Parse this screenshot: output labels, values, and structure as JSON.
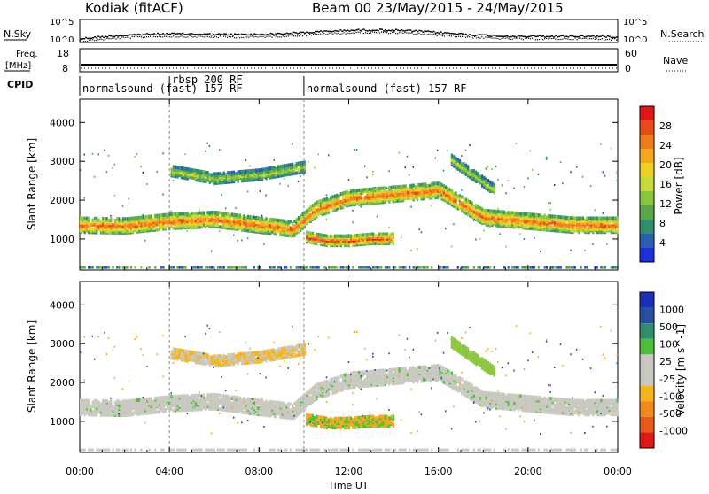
{
  "header": {
    "station": "Kodiak (fitACF)",
    "beam_info": "Beam 00  23/May/2015 - 24/May/2015"
  },
  "aux_panels": {
    "nsky_label": "N.Sky",
    "nsearch_label": "N.Search",
    "nsky_ticks": [
      "10^5",
      "10^0"
    ],
    "nsearch_ticks": [
      "10^5",
      "10^0"
    ],
    "freq_label_top": "Freq.",
    "freq_label_bottom": "[MHz]",
    "freq_ticks": [
      "18",
      "8"
    ],
    "nave_label": "Nave",
    "nave_ticks": [
      "60",
      "0"
    ],
    "cpid_label": "CPID"
  },
  "cpid_segments": [
    {
      "label": "normalsound (fast) 157 RF",
      "start_hour": 0
    },
    {
      "label": "rbsp 200 RF",
      "start_hour": 4.0
    },
    {
      "label": "normalsound (fast) 157 RF",
      "start_hour": 10.0
    }
  ],
  "time_axis": {
    "label": "Time UT",
    "ticks": [
      "00:00",
      "04:00",
      "08:00",
      "12:00",
      "16:00",
      "20:00",
      "00:00"
    ],
    "range_hours": [
      0,
      24
    ]
  },
  "chart_data": [
    {
      "type": "heatmap",
      "name": "power",
      "ylabel": "Slant Range [km]",
      "yticks": [
        "1000",
        "2000",
        "3000",
        "4000"
      ],
      "ylim": [
        200,
        4600
      ],
      "colorbar_label": "Power [dB]",
      "colorbar_ticks": [
        "4",
        "8",
        "12",
        "16",
        "20",
        "24",
        "28"
      ],
      "colorbar_colors": [
        "#1f2fd9",
        "#2a5fb0",
        "#2f8f6a",
        "#5aa84a",
        "#8cc63f",
        "#c8d93a",
        "#f0d020",
        "#f5a81e",
        "#f07a1c",
        "#e84a1a",
        "#e01818"
      ],
      "echo_bands": [
        {
          "x_hours": [
            0,
            2,
            4,
            6,
            8,
            9.5,
            10.5,
            12,
            14,
            16,
            18,
            20,
            22,
            24
          ],
          "y_km": [
            1400,
            1380,
            1500,
            1550,
            1400,
            1300,
            1800,
            2100,
            2200,
            2300,
            1600,
            1500,
            1400,
            1400
          ],
          "intensity_db": 26
        },
        {
          "x_hours": [
            10,
            11,
            12,
            13,
            14
          ],
          "y_km": [
            1100,
            1000,
            1000,
            1050,
            1050
          ],
          "intensity_db": 28
        },
        {
          "x_hours": [
            4,
            6,
            8,
            10
          ],
          "y_km": [
            2800,
            2600,
            2700,
            2900
          ],
          "intensity_db": 14
        },
        {
          "x_hours": [
            16.5,
            17.5,
            18.5
          ],
          "y_km": [
            3100,
            2700,
            2300
          ],
          "intensity_db": 14
        }
      ]
    },
    {
      "type": "heatmap",
      "name": "velocity",
      "ylabel": "Slant Range [km]",
      "yticks": [
        "1000",
        "2000",
        "3000",
        "4000"
      ],
      "ylim": [
        200,
        4600
      ],
      "colorbar_label": "Velocity [m s^-1]",
      "colorbar_ticks": [
        "1000",
        "500",
        "100",
        "25",
        "-25",
        "-100",
        "-500",
        "-1000"
      ],
      "colorbar_colors": [
        "#1b2fb8",
        "#2b4fa0",
        "#2f8f6a",
        "#4fbf3a",
        "#c8c8c0",
        "#c8c8c0",
        "#f5b41e",
        "#f08a1c",
        "#e85a1a",
        "#e01818"
      ]
    }
  ]
}
